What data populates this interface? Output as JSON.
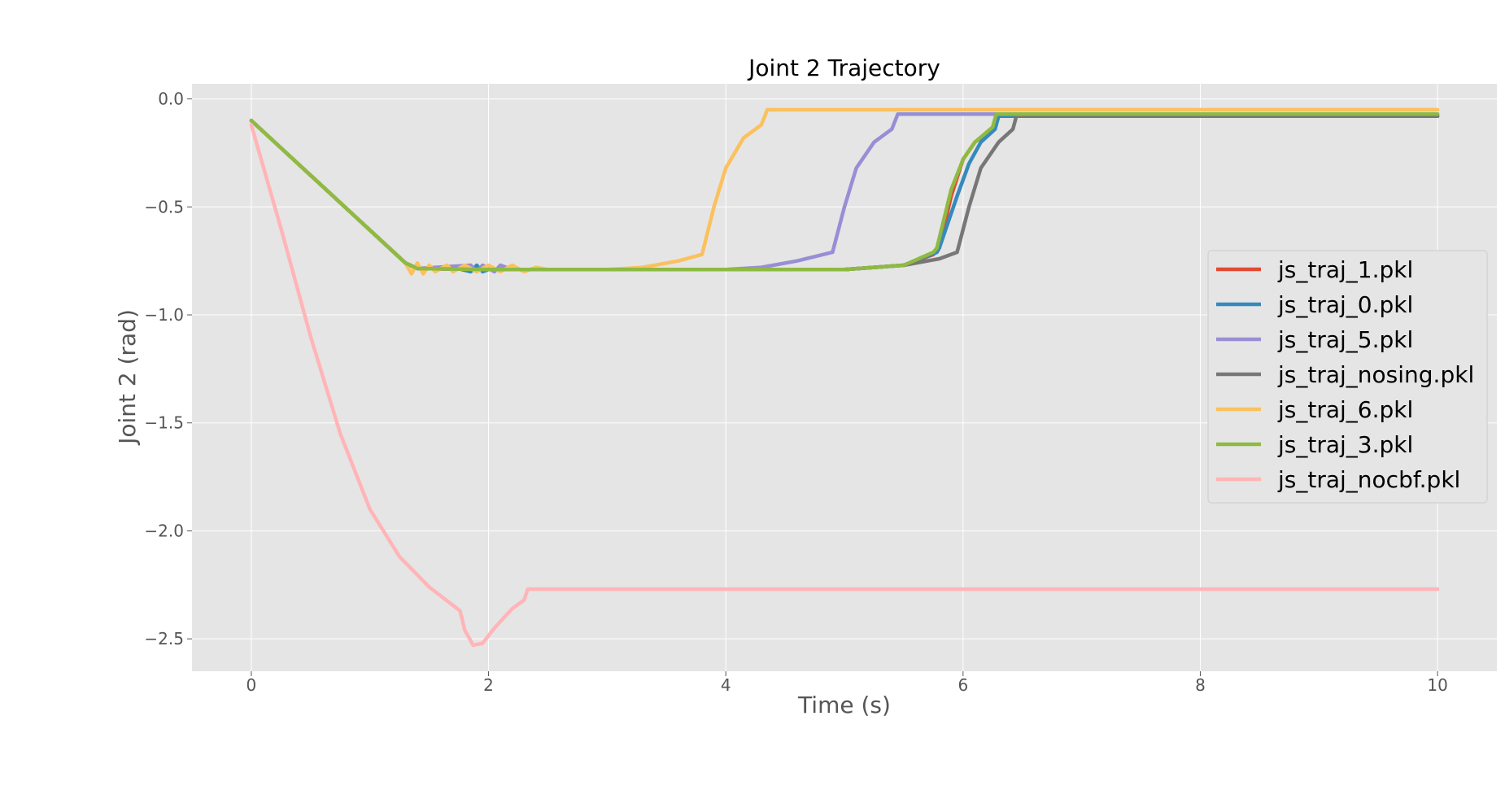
{
  "chart_data": {
    "type": "line",
    "title": "Joint 2 Trajectory",
    "xlabel": "Time (s)",
    "ylabel": "Joint 2 (rad)",
    "xlim": [
      -0.5,
      10.5
    ],
    "ylim": [
      -2.65,
      0.07
    ],
    "xticks": [
      0,
      2,
      4,
      6,
      8,
      10
    ],
    "xtick_labels": [
      "0",
      "2",
      "4",
      "6",
      "8",
      "10"
    ],
    "yticks": [
      0.0,
      -0.5,
      -1.0,
      -1.5,
      -2.0,
      -2.5
    ],
    "ytick_labels": [
      "0.0",
      "−0.5",
      "−1.0",
      "−1.5",
      "−2.0",
      "−2.5"
    ],
    "grid": true,
    "legend_position": "center-right",
    "background": "#e5e5e5",
    "series": [
      {
        "name": "js_traj_1.pkl",
        "color": "#e24a33",
        "points": [
          [
            0,
            -0.1
          ],
          [
            1.3,
            -0.76
          ],
          [
            1.4,
            -0.785
          ],
          [
            2,
            -0.79
          ],
          [
            4,
            -0.79
          ],
          [
            5,
            -0.79
          ],
          [
            5.5,
            -0.77
          ],
          [
            5.75,
            -0.72
          ],
          [
            5.8,
            -0.69
          ],
          [
            5.9,
            -0.45
          ],
          [
            6,
            -0.28
          ],
          [
            6.1,
            -0.2
          ],
          [
            6.25,
            -0.14
          ],
          [
            6.3,
            -0.08
          ],
          [
            10,
            -0.08
          ]
        ]
      },
      {
        "name": "js_traj_0.pkl",
        "color": "#348abd",
        "points": [
          [
            0,
            -0.1
          ],
          [
            1.3,
            -0.76
          ],
          [
            1.4,
            -0.785
          ],
          [
            1.7,
            -0.78
          ],
          [
            1.85,
            -0.8
          ],
          [
            1.9,
            -0.77
          ],
          [
            1.95,
            -0.8
          ],
          [
            2,
            -0.79
          ],
          [
            4,
            -0.79
          ],
          [
            5,
            -0.79
          ],
          [
            5.5,
            -0.77
          ],
          [
            5.78,
            -0.71
          ],
          [
            5.8,
            -0.69
          ],
          [
            5.95,
            -0.45
          ],
          [
            6.05,
            -0.3
          ],
          [
            6.15,
            -0.2
          ],
          [
            6.27,
            -0.14
          ],
          [
            6.3,
            -0.08
          ],
          [
            10,
            -0.08
          ]
        ]
      },
      {
        "name": "js_traj_5.pkl",
        "color": "#988ed5",
        "points": [
          [
            0,
            -0.1
          ],
          [
            1.3,
            -0.76
          ],
          [
            1.4,
            -0.785
          ],
          [
            1.85,
            -0.77
          ],
          [
            1.9,
            -0.8
          ],
          [
            1.95,
            -0.77
          ],
          [
            2.05,
            -0.8
          ],
          [
            2.1,
            -0.77
          ],
          [
            2.2,
            -0.79
          ],
          [
            4,
            -0.79
          ],
          [
            4.3,
            -0.78
          ],
          [
            4.6,
            -0.75
          ],
          [
            4.9,
            -0.71
          ],
          [
            5,
            -0.5
          ],
          [
            5.1,
            -0.32
          ],
          [
            5.25,
            -0.2
          ],
          [
            5.4,
            -0.14
          ],
          [
            5.45,
            -0.07
          ],
          [
            10,
            -0.07
          ]
        ]
      },
      {
        "name": "js_traj_nosing.pkl",
        "color": "#777777",
        "points": [
          [
            0,
            -0.1
          ],
          [
            1.3,
            -0.76
          ],
          [
            1.4,
            -0.785
          ],
          [
            2,
            -0.79
          ],
          [
            4,
            -0.79
          ],
          [
            5,
            -0.79
          ],
          [
            5.5,
            -0.77
          ],
          [
            5.8,
            -0.74
          ],
          [
            5.95,
            -0.71
          ],
          [
            6.05,
            -0.5
          ],
          [
            6.15,
            -0.32
          ],
          [
            6.3,
            -0.2
          ],
          [
            6.42,
            -0.14
          ],
          [
            6.45,
            -0.08
          ],
          [
            10,
            -0.08
          ]
        ]
      },
      {
        "name": "js_traj_6.pkl",
        "color": "#fbc15e",
        "points": [
          [
            0,
            -0.1
          ],
          [
            1.3,
            -0.76
          ],
          [
            1.35,
            -0.81
          ],
          [
            1.4,
            -0.76
          ],
          [
            1.45,
            -0.81
          ],
          [
            1.5,
            -0.77
          ],
          [
            1.55,
            -0.8
          ],
          [
            1.65,
            -0.77
          ],
          [
            1.7,
            -0.8
          ],
          [
            1.8,
            -0.77
          ],
          [
            1.9,
            -0.8
          ],
          [
            2,
            -0.77
          ],
          [
            2.1,
            -0.8
          ],
          [
            2.2,
            -0.77
          ],
          [
            2.3,
            -0.8
          ],
          [
            2.4,
            -0.78
          ],
          [
            2.5,
            -0.79
          ],
          [
            3,
            -0.79
          ],
          [
            3.3,
            -0.78
          ],
          [
            3.6,
            -0.75
          ],
          [
            3.8,
            -0.72
          ],
          [
            3.9,
            -0.5
          ],
          [
            4,
            -0.32
          ],
          [
            4.15,
            -0.18
          ],
          [
            4.3,
            -0.12
          ],
          [
            4.35,
            -0.05
          ],
          [
            10,
            -0.05
          ]
        ]
      },
      {
        "name": "js_traj_3.pkl",
        "color": "#8eba42",
        "points": [
          [
            0,
            -0.1
          ],
          [
            1.3,
            -0.76
          ],
          [
            1.4,
            -0.785
          ],
          [
            2,
            -0.79
          ],
          [
            4,
            -0.79
          ],
          [
            5,
            -0.79
          ],
          [
            5.5,
            -0.77
          ],
          [
            5.75,
            -0.71
          ],
          [
            5.78,
            -0.69
          ],
          [
            5.9,
            -0.42
          ],
          [
            6,
            -0.28
          ],
          [
            6.1,
            -0.2
          ],
          [
            6.25,
            -0.13
          ],
          [
            6.28,
            -0.07
          ],
          [
            10,
            -0.07
          ]
        ]
      },
      {
        "name": "js_traj_nocbf.pkl",
        "color": "#ffb5b8",
        "points": [
          [
            0,
            -0.12
          ],
          [
            0.25,
            -0.6
          ],
          [
            0.5,
            -1.1
          ],
          [
            0.75,
            -1.55
          ],
          [
            1,
            -1.9
          ],
          [
            1.25,
            -2.12
          ],
          [
            1.5,
            -2.26
          ],
          [
            1.76,
            -2.37
          ],
          [
            1.8,
            -2.46
          ],
          [
            1.87,
            -2.53
          ],
          [
            1.95,
            -2.52
          ],
          [
            2.05,
            -2.45
          ],
          [
            2.2,
            -2.36
          ],
          [
            2.3,
            -2.32
          ],
          [
            2.33,
            -2.27
          ],
          [
            10,
            -2.27
          ]
        ]
      }
    ]
  }
}
